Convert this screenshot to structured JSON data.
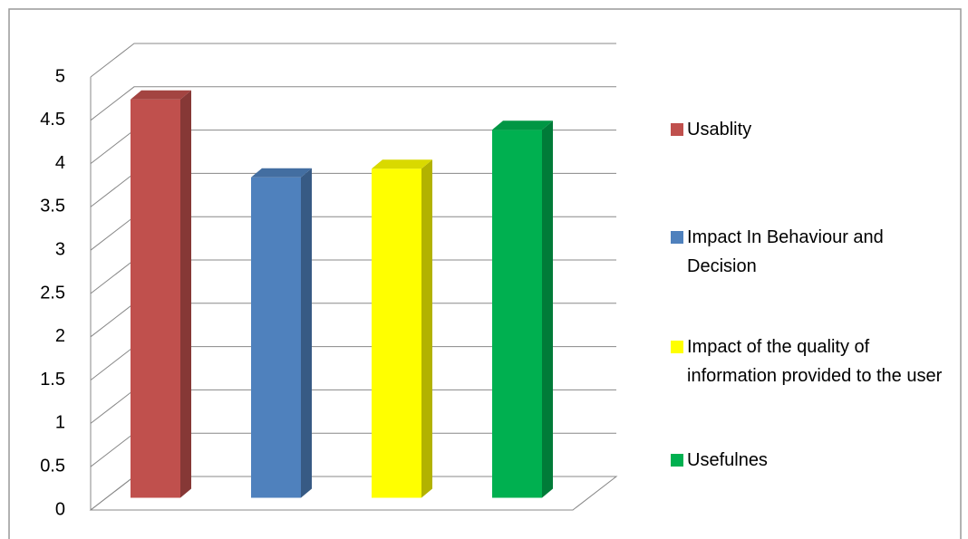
{
  "chart_data": {
    "type": "bar",
    "three_d": true,
    "series": [
      {
        "name": "Usablity",
        "color": "#c0504d",
        "values": [
          4.6
        ]
      },
      {
        "name": "Impact In Behaviour and Decision",
        "color": "#4f81bd",
        "values": [
          3.7
        ]
      },
      {
        "name": "Impact of the quality of information provided to the user",
        "color": "#ffff00",
        "values": [
          3.8
        ]
      },
      {
        "name": "Usefulnes",
        "color": "#00b050",
        "values": [
          4.25
        ]
      }
    ],
    "ylim": [
      0,
      5
    ],
    "yticks": [
      0,
      0.5,
      1,
      1.5,
      2,
      2.5,
      3,
      3.5,
      4,
      4.5,
      5
    ],
    "grid": true
  }
}
